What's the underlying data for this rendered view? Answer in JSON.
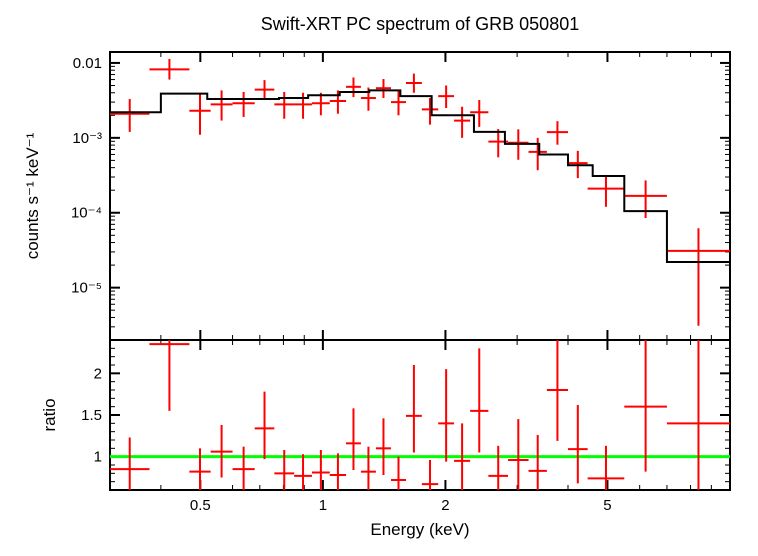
{
  "title": "Swift-XRT PC spectrum of GRB 050801",
  "title_fontsize": 18,
  "background_color": "#ffffff",
  "axis_color": "#000000",
  "data_color": "#ff0000",
  "model_color": "#000000",
  "ratio_line_color": "#00ff00",
  "errorbar_width": 2,
  "model_width": 2,
  "axis_width": 2,
  "tick_fontsize": 15,
  "label_fontsize": 17,
  "xlabel": "Energy (keV)",
  "ylabel_top": "counts s⁻¹ keV⁻¹",
  "ylabel_bottom": "ratio",
  "x_scale": "log",
  "y_top_scale": "log",
  "y_bottom_scale": "linear",
  "xlim": [
    0.3,
    10.0
  ],
  "ylim_top": [
    2e-06,
    0.014
  ],
  "ylim_bottom": [
    0.6,
    2.4
  ],
  "x_major_ticks": [
    0.5,
    1,
    2,
    5
  ],
  "x_major_labels": [
    "0.5",
    "1",
    "2",
    "5"
  ],
  "y_top_ticks": [
    1e-05,
    0.0001,
    0.001,
    0.01
  ],
  "y_top_labels": [
    "10⁻⁵",
    "10⁻⁴",
    "10⁻³",
    "0.01"
  ],
  "y_bottom_ticks": [
    1,
    1.5,
    2
  ],
  "y_bottom_labels": [
    "1",
    "1.5",
    "2"
  ],
  "model_bins": [
    {
      "xlo": 0.3,
      "xhi": 0.4,
      "y": 0.0022
    },
    {
      "xlo": 0.4,
      "xhi": 0.52,
      "y": 0.0039
    },
    {
      "xlo": 0.52,
      "xhi": 0.64,
      "y": 0.0033
    },
    {
      "xlo": 0.64,
      "xhi": 0.78,
      "y": 0.0033
    },
    {
      "xlo": 0.78,
      "xhi": 0.92,
      "y": 0.0034
    },
    {
      "xlo": 0.92,
      "xhi": 1.1,
      "y": 0.0037
    },
    {
      "xlo": 1.1,
      "xhi": 1.3,
      "y": 0.0041
    },
    {
      "xlo": 1.3,
      "xhi": 1.55,
      "y": 0.0043
    },
    {
      "xlo": 1.55,
      "xhi": 1.85,
      "y": 0.0036
    },
    {
      "xlo": 1.85,
      "xhi": 2.35,
      "y": 0.002
    },
    {
      "xlo": 2.35,
      "xhi": 2.8,
      "y": 0.0012
    },
    {
      "xlo": 2.8,
      "xhi": 3.4,
      "y": 0.00083
    },
    {
      "xlo": 3.4,
      "xhi": 4.0,
      "y": 0.0006
    },
    {
      "xlo": 4.0,
      "xhi": 4.6,
      "y": 0.00043
    },
    {
      "xlo": 4.6,
      "xhi": 5.5,
      "y": 0.00031
    },
    {
      "xlo": 5.5,
      "xhi": 7.0,
      "y": 0.000105
    },
    {
      "xlo": 7.0,
      "xhi": 10.0,
      "y": 2.2e-05
    }
  ],
  "data_top": [
    {
      "xlo": 0.3,
      "xhi": 0.375,
      "y": 0.0021,
      "ylo": 0.0012,
      "yhi": 0.0033
    },
    {
      "xlo": 0.375,
      "xhi": 0.47,
      "y": 0.0082,
      "ylo": 0.006,
      "yhi": 0.0113
    },
    {
      "xlo": 0.47,
      "xhi": 0.53,
      "y": 0.0023,
      "ylo": 0.0011,
      "yhi": 0.004
    },
    {
      "xlo": 0.53,
      "xhi": 0.6,
      "y": 0.0028,
      "ylo": 0.0017,
      "yhi": 0.0043
    },
    {
      "xlo": 0.6,
      "xhi": 0.68,
      "y": 0.0029,
      "ylo": 0.0019,
      "yhi": 0.0041
    },
    {
      "xlo": 0.68,
      "xhi": 0.76,
      "y": 0.0044,
      "ylo": 0.0032,
      "yhi": 0.0059
    },
    {
      "xlo": 0.76,
      "xhi": 0.85,
      "y": 0.0028,
      "ylo": 0.0018,
      "yhi": 0.0041
    },
    {
      "xlo": 0.85,
      "xhi": 0.94,
      "y": 0.0028,
      "ylo": 0.0018,
      "yhi": 0.004
    },
    {
      "xlo": 0.94,
      "xhi": 1.04,
      "y": 0.0029,
      "ylo": 0.002,
      "yhi": 0.004
    },
    {
      "xlo": 1.04,
      "xhi": 1.14,
      "y": 0.0031,
      "ylo": 0.0021,
      "yhi": 0.0043
    },
    {
      "xlo": 1.14,
      "xhi": 1.24,
      "y": 0.0048,
      "ylo": 0.0035,
      "yhi": 0.0064
    },
    {
      "xlo": 1.24,
      "xhi": 1.35,
      "y": 0.0034,
      "ylo": 0.0023,
      "yhi": 0.0047
    },
    {
      "xlo": 1.35,
      "xhi": 1.47,
      "y": 0.0046,
      "ylo": 0.0034,
      "yhi": 0.0061
    },
    {
      "xlo": 1.47,
      "xhi": 1.6,
      "y": 0.003,
      "ylo": 0.002,
      "yhi": 0.0043
    },
    {
      "xlo": 1.6,
      "xhi": 1.75,
      "y": 0.0054,
      "ylo": 0.004,
      "yhi": 0.0072
    },
    {
      "xlo": 1.75,
      "xhi": 1.92,
      "y": 0.0024,
      "ylo": 0.0015,
      "yhi": 0.0034
    },
    {
      "xlo": 1.92,
      "xhi": 2.1,
      "y": 0.0036,
      "ylo": 0.0025,
      "yhi": 0.005
    },
    {
      "xlo": 2.1,
      "xhi": 2.3,
      "y": 0.0017,
      "ylo": 0.001,
      "yhi": 0.0026
    },
    {
      "xlo": 2.3,
      "xhi": 2.55,
      "y": 0.0022,
      "ylo": 0.0014,
      "yhi": 0.0032
    },
    {
      "xlo": 2.55,
      "xhi": 2.85,
      "y": 0.00089,
      "ylo": 0.00055,
      "yhi": 0.00131
    },
    {
      "xlo": 2.85,
      "xhi": 3.2,
      "y": 0.00086,
      "ylo": 0.00051,
      "yhi": 0.0013
    },
    {
      "xlo": 3.2,
      "xhi": 3.55,
      "y": 0.00065,
      "ylo": 0.00037,
      "yhi": 0.001
    },
    {
      "xlo": 3.55,
      "xhi": 4.0,
      "y": 0.00119,
      "ylo": 0.00081,
      "yhi": 0.00167
    },
    {
      "xlo": 4.0,
      "xhi": 4.47,
      "y": 0.00046,
      "ylo": 0.00029,
      "yhi": 0.00067
    },
    {
      "xlo": 4.47,
      "xhi": 5.5,
      "y": 0.00021,
      "ylo": 0.00012,
      "yhi": 0.00032
    },
    {
      "xlo": 5.5,
      "xhi": 7.0,
      "y": 0.000168,
      "ylo": 8.5e-05,
      "yhi": 0.00027
    },
    {
      "xlo": 7.0,
      "xhi": 10.0,
      "y": 3.1e-05,
      "ylo": 3.1e-06,
      "yhi": 6.2e-05
    }
  ],
  "data_ratio": [
    {
      "xlo": 0.3,
      "xhi": 0.375,
      "y": 0.85,
      "ylo": 0.6,
      "yhi": 1.23
    },
    {
      "xlo": 0.375,
      "xhi": 0.47,
      "y": 2.35,
      "ylo": 1.55,
      "yhi": 2.4
    },
    {
      "xlo": 0.47,
      "xhi": 0.53,
      "y": 0.82,
      "ylo": 0.6,
      "yhi": 1.1
    },
    {
      "xlo": 0.53,
      "xhi": 0.6,
      "y": 1.06,
      "ylo": 0.75,
      "yhi": 1.38
    },
    {
      "xlo": 0.6,
      "xhi": 0.68,
      "y": 0.85,
      "ylo": 0.6,
      "yhi": 1.12
    },
    {
      "xlo": 0.68,
      "xhi": 0.76,
      "y": 1.34,
      "ylo": 0.97,
      "yhi": 1.78
    },
    {
      "xlo": 0.76,
      "xhi": 0.85,
      "y": 0.8,
      "ylo": 0.55,
      "yhi": 1.08
    },
    {
      "xlo": 0.85,
      "xhi": 0.94,
      "y": 0.77,
      "ylo": 0.55,
      "yhi": 1.03
    },
    {
      "xlo": 0.94,
      "xhi": 1.04,
      "y": 0.81,
      "ylo": 0.58,
      "yhi": 1.08
    },
    {
      "xlo": 1.04,
      "xhi": 1.14,
      "y": 0.78,
      "ylo": 0.55,
      "yhi": 1.04
    },
    {
      "xlo": 1.14,
      "xhi": 1.24,
      "y": 1.16,
      "ylo": 0.84,
      "yhi": 1.58
    },
    {
      "xlo": 1.24,
      "xhi": 1.35,
      "y": 0.82,
      "ylo": 0.56,
      "yhi": 1.12
    },
    {
      "xlo": 1.35,
      "xhi": 1.47,
      "y": 1.1,
      "ylo": 0.78,
      "yhi": 1.46
    },
    {
      "xlo": 1.47,
      "xhi": 1.6,
      "y": 0.72,
      "ylo": 0.5,
      "yhi": 1.0
    },
    {
      "xlo": 1.6,
      "xhi": 1.75,
      "y": 1.49,
      "ylo": 1.05,
      "yhi": 2.1
    },
    {
      "xlo": 1.75,
      "xhi": 1.92,
      "y": 0.67,
      "ylo": 0.45,
      "yhi": 0.96
    },
    {
      "xlo": 1.92,
      "xhi": 2.1,
      "y": 1.4,
      "ylo": 0.94,
      "yhi": 2.05
    },
    {
      "xlo": 2.1,
      "xhi": 2.3,
      "y": 0.95,
      "ylo": 0.6,
      "yhi": 1.4
    },
    {
      "xlo": 2.3,
      "xhi": 2.55,
      "y": 1.55,
      "ylo": 1.05,
      "yhi": 2.3
    },
    {
      "xlo": 2.55,
      "xhi": 2.85,
      "y": 0.77,
      "ylo": 0.48,
      "yhi": 1.13
    },
    {
      "xlo": 2.85,
      "xhi": 3.2,
      "y": 0.96,
      "ylo": 0.58,
      "yhi": 1.45
    },
    {
      "xlo": 3.2,
      "xhi": 3.55,
      "y": 0.83,
      "ylo": 0.47,
      "yhi": 1.26
    },
    {
      "xlo": 3.55,
      "xhi": 4.0,
      "y": 1.8,
      "ylo": 1.19,
      "yhi": 2.4
    },
    {
      "xlo": 4.0,
      "xhi": 4.47,
      "y": 1.09,
      "ylo": 0.68,
      "yhi": 1.62
    },
    {
      "xlo": 4.47,
      "xhi": 5.5,
      "y": 0.74,
      "ylo": 0.45,
      "yhi": 1.13
    },
    {
      "xlo": 5.5,
      "xhi": 7.0,
      "y": 1.6,
      "ylo": 0.82,
      "yhi": 2.4
    },
    {
      "xlo": 7.0,
      "xhi": 10.0,
      "y": 1.4,
      "ylo": 0.6,
      "yhi": 2.4
    }
  ]
}
